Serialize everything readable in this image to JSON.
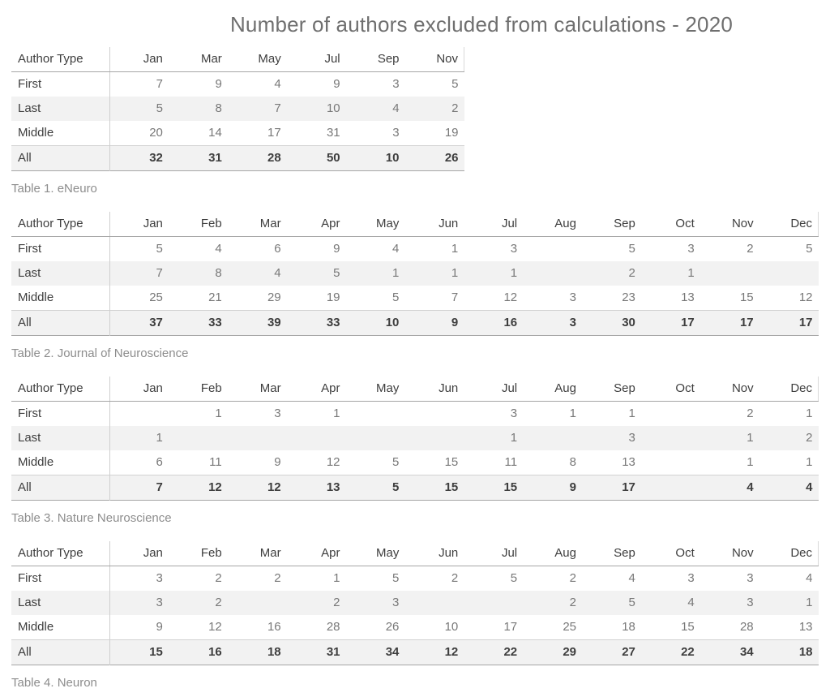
{
  "title": "Number of authors excluded from calculations - 2020",
  "row_header_label": "Author Type",
  "colors": {
    "title_text": "#6f6f6f",
    "header_text": "#3e3e3e",
    "value_text": "#787878",
    "caption_text": "#8d8d8d",
    "band_background": "#f2f2f2"
  },
  "chart_data": [
    {
      "type": "table",
      "title": "Table 1. eNeuro",
      "columns": [
        "Jan",
        "Mar",
        "May",
        "Jul",
        "Sep",
        "Nov"
      ],
      "rows": [
        {
          "label": "First",
          "values": [
            "7",
            "9",
            "4",
            "9",
            "3",
            "5"
          ]
        },
        {
          "label": "Last",
          "values": [
            "5",
            "8",
            "7",
            "10",
            "4",
            "2"
          ]
        },
        {
          "label": "Middle",
          "values": [
            "20",
            "14",
            "17",
            "31",
            "3",
            "19"
          ]
        },
        {
          "label": "All",
          "values": [
            "32",
            "31",
            "28",
            "50",
            "10",
            "26"
          ]
        }
      ]
    },
    {
      "type": "table",
      "title": "Table 2. Journal of Neuroscience",
      "columns": [
        "Jan",
        "Feb",
        "Mar",
        "Apr",
        "May",
        "Jun",
        "Jul",
        "Aug",
        "Sep",
        "Oct",
        "Nov",
        "Dec"
      ],
      "rows": [
        {
          "label": "First",
          "values": [
            "5",
            "4",
            "6",
            "9",
            "4",
            "1",
            "3",
            "",
            "5",
            "3",
            "2",
            "5"
          ]
        },
        {
          "label": "Last",
          "values": [
            "7",
            "8",
            "4",
            "5",
            "1",
            "1",
            "1",
            "",
            "2",
            "1",
            "",
            ""
          ]
        },
        {
          "label": "Middle",
          "values": [
            "25",
            "21",
            "29",
            "19",
            "5",
            "7",
            "12",
            "3",
            "23",
            "13",
            "15",
            "12"
          ]
        },
        {
          "label": "All",
          "values": [
            "37",
            "33",
            "39",
            "33",
            "10",
            "9",
            "16",
            "3",
            "30",
            "17",
            "17",
            "17"
          ]
        }
      ]
    },
    {
      "type": "table",
      "title": "Table 3. Nature Neuroscience",
      "columns": [
        "Jan",
        "Feb",
        "Mar",
        "Apr",
        "May",
        "Jun",
        "Jul",
        "Aug",
        "Sep",
        "Oct",
        "Nov",
        "Dec"
      ],
      "rows": [
        {
          "label": "First",
          "values": [
            "",
            "1",
            "3",
            "1",
            "",
            "",
            "3",
            "1",
            "1",
            "",
            "2",
            "1"
          ]
        },
        {
          "label": "Last",
          "values": [
            "1",
            "",
            "",
            "",
            "",
            "",
            "1",
            "",
            "3",
            "",
            "1",
            "2"
          ]
        },
        {
          "label": "Middle",
          "values": [
            "6",
            "11",
            "9",
            "12",
            "5",
            "15",
            "11",
            "8",
            "13",
            "",
            "1",
            "1"
          ]
        },
        {
          "label": "All",
          "values": [
            "7",
            "12",
            "12",
            "13",
            "5",
            "15",
            "15",
            "9",
            "17",
            "",
            "4",
            "4"
          ]
        }
      ]
    },
    {
      "type": "table",
      "title": "Table 4. Neuron",
      "columns": [
        "Jan",
        "Feb",
        "Mar",
        "Apr",
        "May",
        "Jun",
        "Jul",
        "Aug",
        "Sep",
        "Oct",
        "Nov",
        "Dec"
      ],
      "rows": [
        {
          "label": "First",
          "values": [
            "3",
            "2",
            "2",
            "1",
            "5",
            "2",
            "5",
            "2",
            "4",
            "3",
            "3",
            "4"
          ]
        },
        {
          "label": "Last",
          "values": [
            "3",
            "2",
            "",
            "2",
            "3",
            "",
            "",
            "2",
            "5",
            "4",
            "3",
            "1"
          ]
        },
        {
          "label": "Middle",
          "values": [
            "9",
            "12",
            "16",
            "28",
            "26",
            "10",
            "17",
            "25",
            "18",
            "15",
            "28",
            "13"
          ]
        },
        {
          "label": "All",
          "values": [
            "15",
            "16",
            "18",
            "31",
            "34",
            "12",
            "22",
            "29",
            "27",
            "22",
            "34",
            "18"
          ]
        }
      ]
    }
  ]
}
